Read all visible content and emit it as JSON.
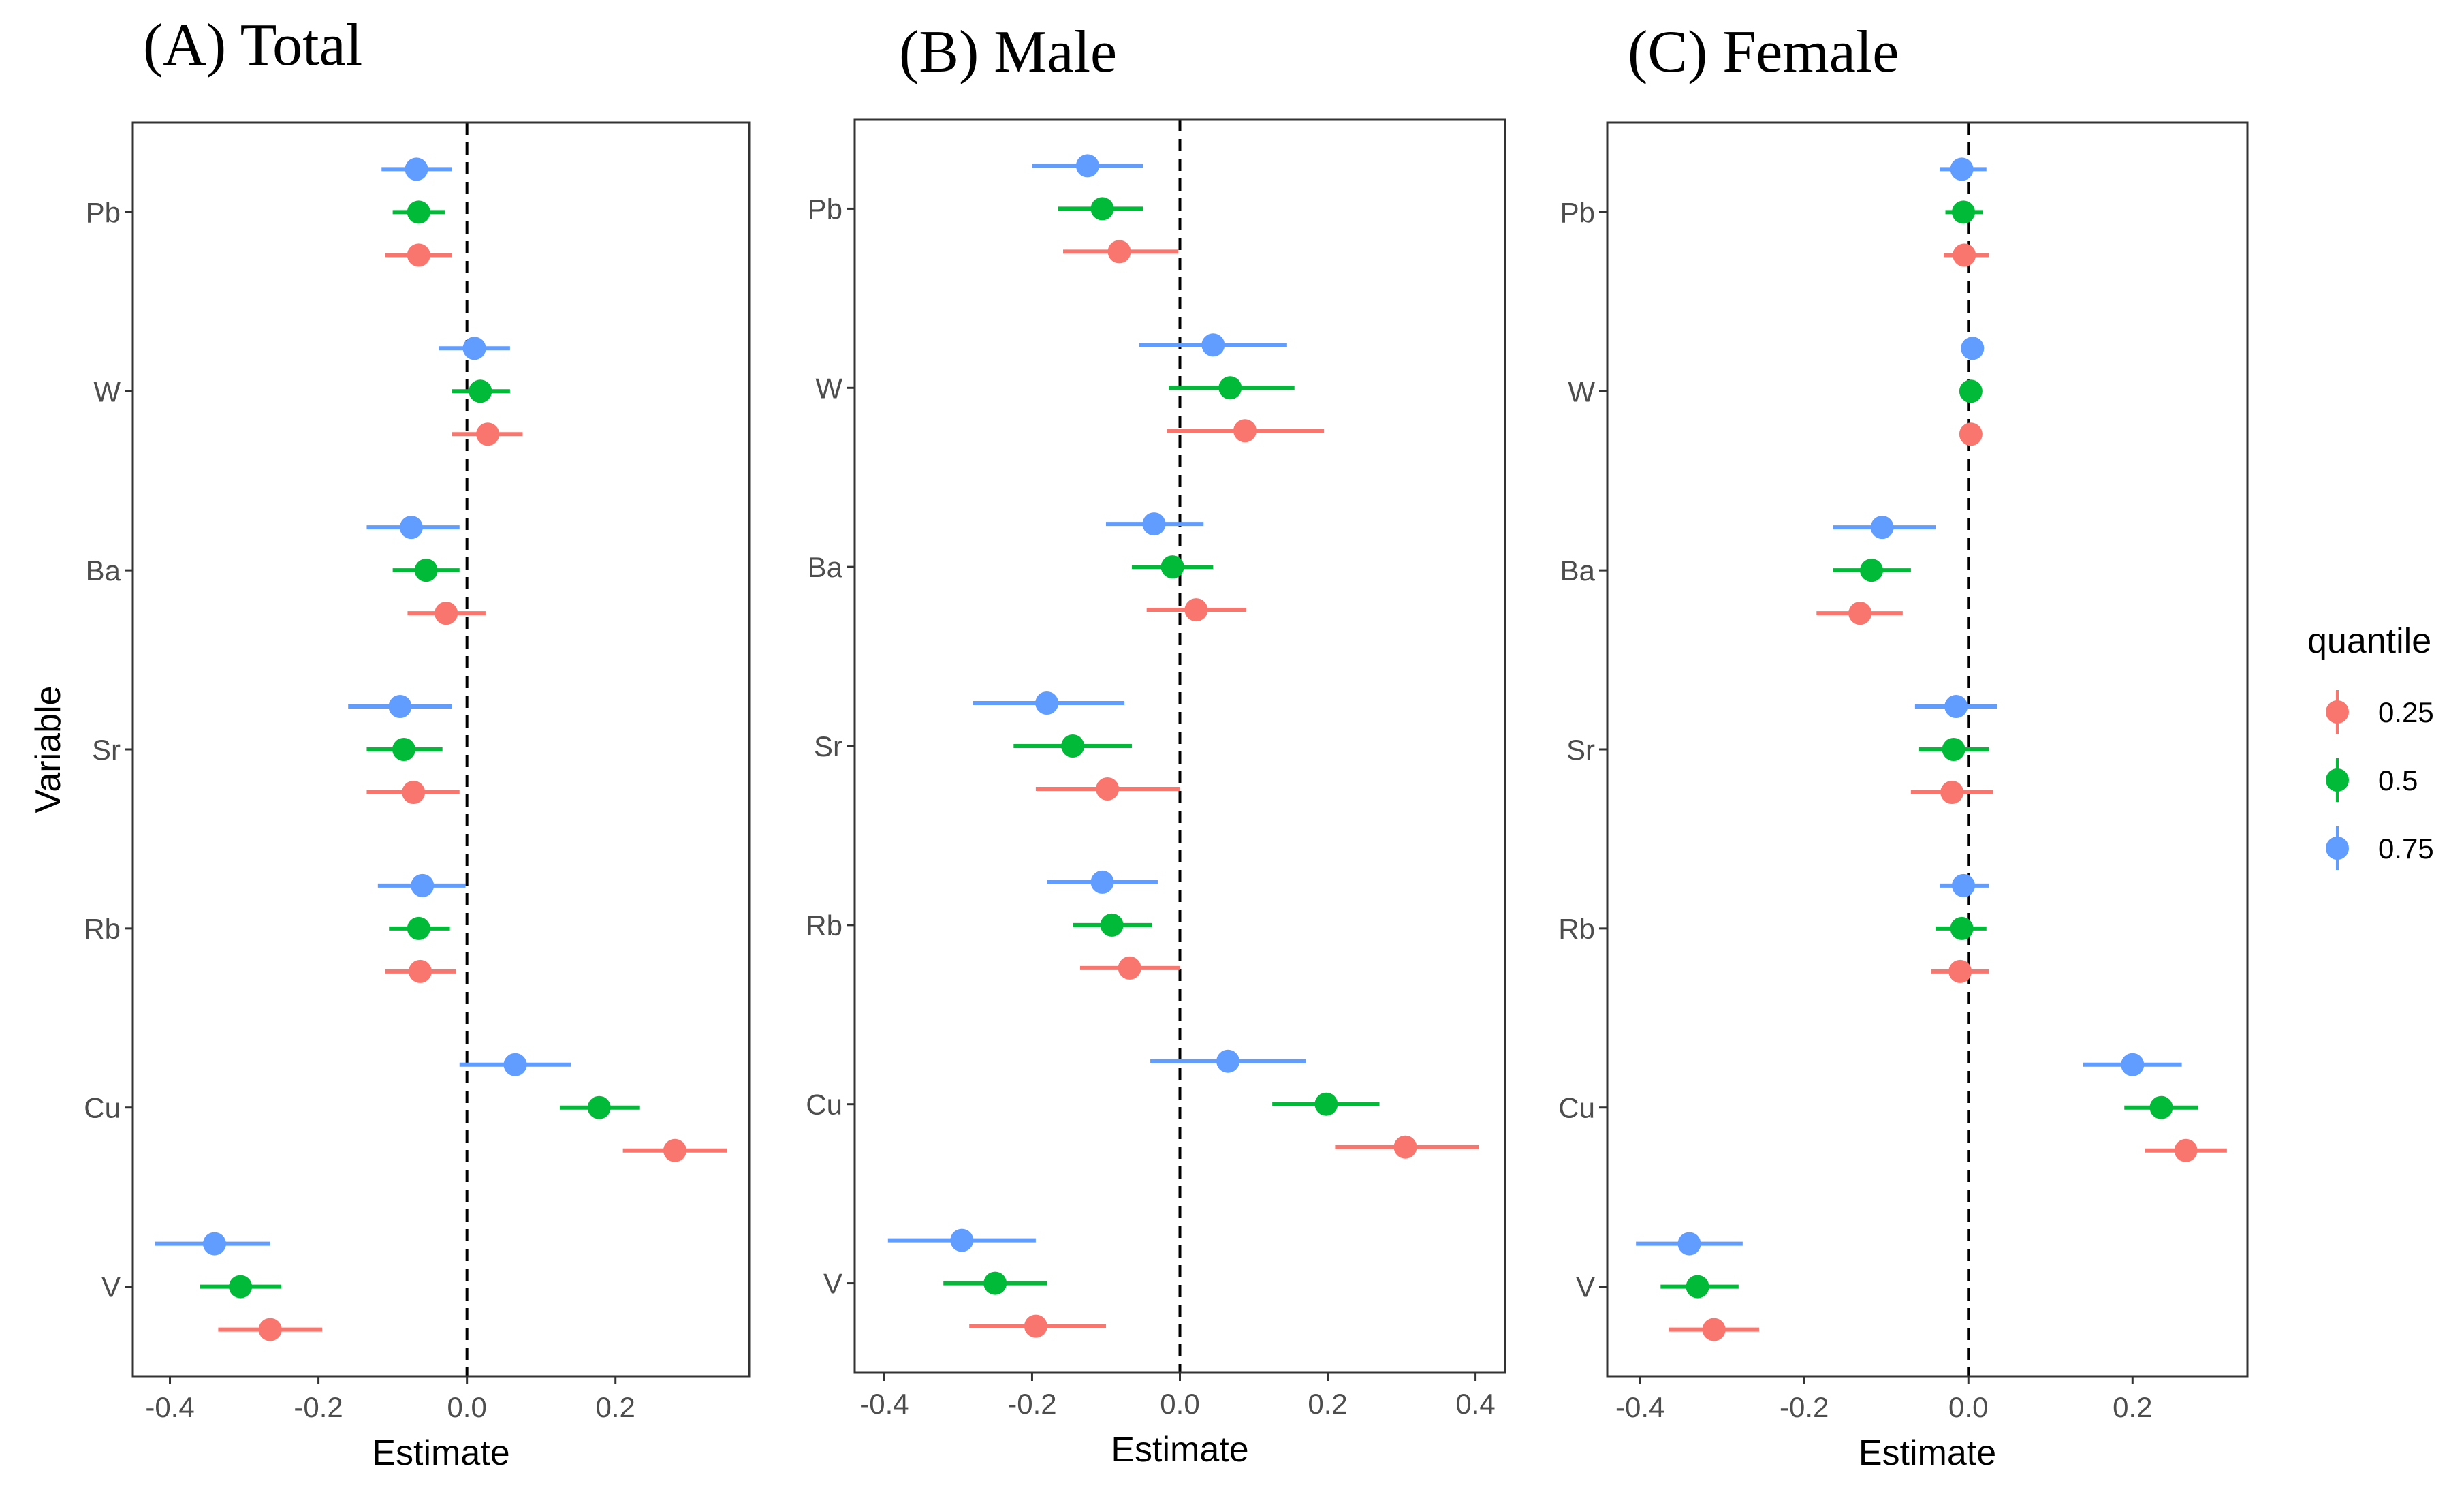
{
  "chart_data": {
    "type": "scatter",
    "subtype": "dot-and-whisker",
    "ylabel": "Variable",
    "xlabel": "Estimate",
    "variables": [
      "Pb",
      "W",
      "Ba",
      "Sr",
      "Rb",
      "Cu",
      "V"
    ],
    "reference_line": 0,
    "legend": {
      "title": "quantile",
      "position": "right",
      "items": [
        {
          "label": "0.25",
          "color": "#F8766D"
        },
        {
          "label": "0.5",
          "color": "#00BA38"
        },
        {
          "label": "0.75",
          "color": "#619CFF"
        }
      ]
    },
    "panels": [
      {
        "title": "(A) Total",
        "xlim": [
          -0.45,
          0.38
        ],
        "xticks": [
          -0.4,
          -0.2,
          0.0,
          0.2
        ],
        "xtick_labels": [
          "-0.4",
          "-0.2",
          "0.0",
          "0.2"
        ],
        "series": [
          {
            "name": "0.25",
            "estimate": [
              -0.065,
              0.028,
              -0.028,
              -0.072,
              -0.063,
              0.28,
              -0.265
            ],
            "lower": [
              -0.11,
              -0.02,
              -0.08,
              -0.135,
              -0.11,
              0.21,
              -0.335
            ],
            "upper": [
              -0.02,
              0.075,
              0.025,
              -0.01,
              -0.015,
              0.35,
              -0.195
            ]
          },
          {
            "name": "0.5",
            "estimate": [
              -0.065,
              0.018,
              -0.055,
              -0.085,
              -0.065,
              0.178,
              -0.305
            ],
            "lower": [
              -0.1,
              -0.02,
              -0.1,
              -0.135,
              -0.105,
              0.125,
              -0.36
            ],
            "upper": [
              -0.03,
              0.058,
              -0.01,
              -0.033,
              -0.023,
              0.233,
              -0.25
            ]
          },
          {
            "name": "0.75",
            "estimate": [
              -0.068,
              0.01,
              -0.075,
              -0.09,
              -0.06,
              0.065,
              -0.34
            ],
            "lower": [
              -0.115,
              -0.038,
              -0.135,
              -0.16,
              -0.12,
              -0.01,
              -0.42
            ],
            "upper": [
              -0.02,
              0.058,
              -0.01,
              -0.02,
              -0.002,
              0.14,
              -0.265
            ]
          }
        ]
      },
      {
        "title": "(B) Male",
        "xlim": [
          -0.44,
          0.44
        ],
        "xticks": [
          -0.4,
          -0.2,
          0.0,
          0.2,
          0.4
        ],
        "xtick_labels": [
          "-0.4",
          "-0.2",
          "0.0",
          "0.2",
          "0.4"
        ],
        "series": [
          {
            "name": "0.25",
            "estimate": [
              -0.082,
              0.088,
              0.022,
              -0.098,
              -0.068,
              0.305,
              -0.195
            ],
            "lower": [
              -0.158,
              -0.018,
              -0.045,
              -0.195,
              -0.135,
              0.21,
              -0.285
            ],
            "upper": [
              -0.002,
              0.195,
              0.09,
              0.0,
              0.0,
              0.405,
              -0.1
            ]
          },
          {
            "name": "0.5",
            "estimate": [
              -0.105,
              0.068,
              -0.01,
              -0.145,
              -0.092,
              0.198,
              -0.25
            ],
            "lower": [
              -0.165,
              -0.015,
              -0.065,
              -0.225,
              -0.145,
              0.125,
              -0.32
            ],
            "upper": [
              -0.05,
              0.155,
              0.045,
              -0.065,
              -0.038,
              0.27,
              -0.18
            ]
          },
          {
            "name": "0.75",
            "estimate": [
              -0.125,
              0.045,
              -0.035,
              -0.18,
              -0.105,
              0.065,
              -0.295
            ],
            "lower": [
              -0.2,
              -0.055,
              -0.1,
              -0.28,
              -0.18,
              -0.04,
              -0.395
            ],
            "upper": [
              -0.05,
              0.145,
              0.032,
              -0.075,
              -0.03,
              0.17,
              -0.195
            ]
          }
        ]
      },
      {
        "title": "(C) Female",
        "xlim": [
          -0.44,
          0.34
        ],
        "xticks": [
          -0.4,
          -0.2,
          0.0,
          0.2
        ],
        "xtick_labels": [
          "-0.4",
          "-0.2",
          "0.0",
          "0.2"
        ],
        "series": [
          {
            "name": "0.25",
            "estimate": [
              -0.005,
              0.003,
              -0.132,
              -0.02,
              -0.01,
              0.265,
              -0.31
            ],
            "lower": [
              -0.03,
              -0.005,
              -0.185,
              -0.07,
              -0.045,
              0.215,
              -0.365
            ],
            "upper": [
              0.025,
              0.013,
              -0.08,
              0.03,
              0.025,
              0.315,
              -0.255
            ]
          },
          {
            "name": "0.5",
            "estimate": [
              -0.006,
              0.003,
              -0.118,
              -0.018,
              -0.008,
              0.235,
              -0.33
            ],
            "lower": [
              -0.028,
              -0.005,
              -0.165,
              -0.06,
              -0.04,
              0.19,
              -0.375
            ],
            "upper": [
              0.018,
              0.013,
              -0.07,
              0.025,
              0.022,
              0.28,
              -0.28
            ]
          },
          {
            "name": "0.75",
            "estimate": [
              -0.008,
              0.005,
              -0.105,
              -0.015,
              -0.006,
              0.2,
              -0.34
            ],
            "lower": [
              -0.035,
              -0.007,
              -0.165,
              -0.065,
              -0.035,
              0.14,
              -0.405
            ],
            "upper": [
              0.022,
              0.017,
              -0.04,
              0.035,
              0.025,
              0.26,
              -0.275
            ]
          }
        ]
      }
    ]
  }
}
